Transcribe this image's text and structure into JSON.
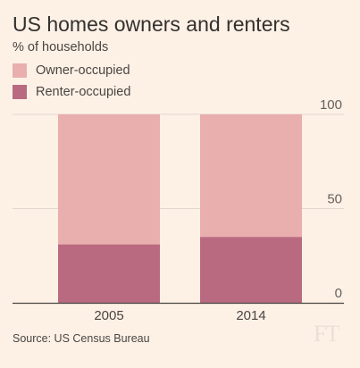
{
  "title": "US homes owners and renters",
  "subtitle": "% of households",
  "legend": [
    {
      "label": "Owner-occupied",
      "color": "#e9aeae"
    },
    {
      "label": "Renter-occupied",
      "color": "#b96a80"
    }
  ],
  "source": "Source: US Census Bureau",
  "logo": "FT",
  "chart_data": {
    "type": "bar",
    "stacked": true,
    "categories": [
      "2005",
      "2014"
    ],
    "series": [
      {
        "name": "Renter-occupied",
        "values": [
          31,
          35
        ],
        "color": "#b96a80"
      },
      {
        "name": "Owner-occupied",
        "values": [
          69,
          65
        ],
        "color": "#e9aeae"
      }
    ],
    "ylim": [
      0,
      100
    ],
    "yticks": [
      "0",
      "50",
      "100"
    ],
    "ytick_values": [
      0,
      50,
      100
    ],
    "y_axis_position": "right",
    "grid": true
  }
}
